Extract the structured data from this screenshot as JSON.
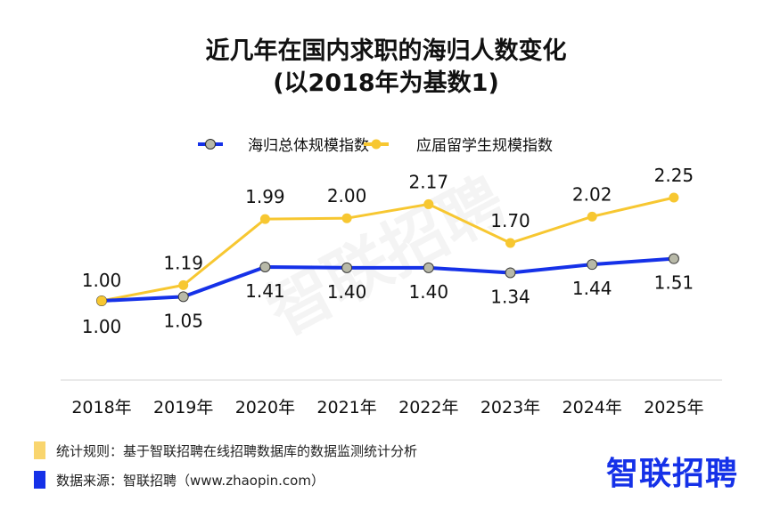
{
  "title": {
    "line1": "近几年在国内求职的海归人数变化",
    "line2": "(以2018年为基数1)"
  },
  "watermark": "智联招聘",
  "chart_data": {
    "type": "line",
    "categories": [
      "2018年",
      "2019年",
      "2020年",
      "2021年",
      "2022年",
      "2023年",
      "2024年",
      "2025年"
    ],
    "series": [
      {
        "name": "海归总体规模指数",
        "color": "#1531E8",
        "marker_color": "#B8B9A8",
        "values": [
          1.0,
          1.05,
          1.41,
          1.4,
          1.4,
          1.34,
          1.44,
          1.51
        ],
        "labels": [
          "1.00",
          "1.05",
          "1.41",
          "1.40",
          "1.40",
          "1.34",
          "1.44",
          "1.51"
        ]
      },
      {
        "name": "应届留学生规模指数",
        "color": "#F7C731",
        "marker_color": "#F7C731",
        "values": [
          1.0,
          1.19,
          1.99,
          2.0,
          2.17,
          1.7,
          2.02,
          2.25
        ],
        "labels": [
          "1.00",
          "1.19",
          "1.99",
          "2.00",
          "2.17",
          "1.70",
          "2.02",
          "2.25"
        ]
      }
    ],
    "legend_position": "top-center",
    "grid": false
  },
  "footer": {
    "rule": {
      "text": "统计规则：基于智联招聘在线招聘数据库的数据监测统计分析",
      "color": "#F9D56E"
    },
    "source": {
      "text": "数据来源：智联招聘（www.zhaopin.com）",
      "color": "#1531E8"
    }
  },
  "logo": {
    "text": "智联招聘",
    "color": "#1531E8"
  }
}
